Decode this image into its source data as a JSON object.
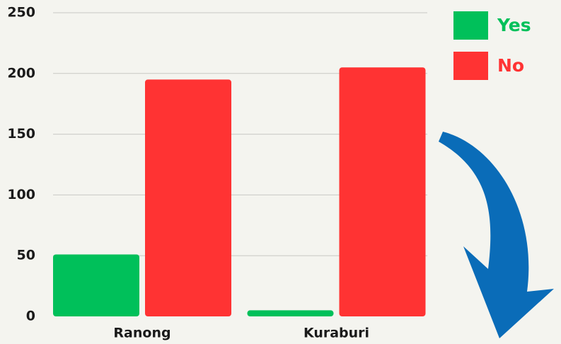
{
  "chart_data": {
    "type": "bar",
    "categories": [
      "Ranong",
      "Kuraburi"
    ],
    "series": [
      {
        "name": "Yes",
        "color": "#00c05a",
        "values": [
          51,
          5
        ]
      },
      {
        "name": "No",
        "color": "#ff3333",
        "values": [
          195,
          205
        ]
      }
    ],
    "ylim": [
      0,
      250
    ],
    "yticks": [
      0,
      50,
      100,
      150,
      200,
      250
    ],
    "grid": true,
    "legend": "top-right"
  }
}
